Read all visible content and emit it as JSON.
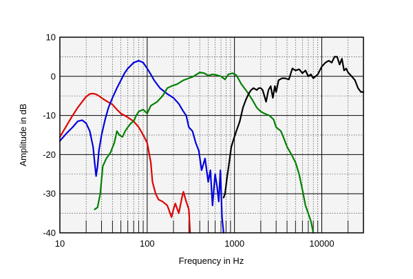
{
  "chart_data": {
    "type": "line",
    "title": "",
    "xlabel": "Frequency in Hz",
    "ylabel": "Amplitude in dB",
    "x_scale": "log",
    "xlim": [
      10,
      30000
    ],
    "ylim": [
      -40,
      10
    ],
    "grid": true,
    "x_ticks": [
      {
        "value": 10,
        "label": "10"
      },
      {
        "value": 100,
        "label": "100"
      },
      {
        "value": 1000,
        "label": "1000"
      },
      {
        "value": 10000,
        "label": "10000"
      }
    ],
    "y_ticks": [
      {
        "value": 10,
        "label": "10"
      },
      {
        "value": 0,
        "label": "0"
      },
      {
        "value": -10,
        "label": "-10"
      },
      {
        "value": -20,
        "label": "-20"
      },
      {
        "value": -30,
        "label": "-30"
      },
      {
        "value": -40,
        "label": "-40"
      }
    ],
    "series": [
      {
        "color": "#e00000",
        "points": [
          [
            10,
            -15.5
          ],
          [
            12,
            -12.5
          ],
          [
            14,
            -10
          ],
          [
            16,
            -8
          ],
          [
            18,
            -6.5
          ],
          [
            20,
            -5.2
          ],
          [
            22,
            -4.5
          ],
          [
            24,
            -4.4
          ],
          [
            26,
            -4.6
          ],
          [
            28,
            -5
          ],
          [
            30,
            -5.5
          ],
          [
            34,
            -6.3
          ],
          [
            40,
            -7.2
          ],
          [
            45,
            -8.5
          ],
          [
            50,
            -9.5
          ],
          [
            55,
            -10
          ],
          [
            60,
            -10.5
          ],
          [
            70,
            -11.5
          ],
          [
            80,
            -13
          ],
          [
            90,
            -15
          ],
          [
            100,
            -17
          ],
          [
            110,
            -22
          ],
          [
            115,
            -27
          ],
          [
            125,
            -30
          ],
          [
            135,
            -31.5
          ],
          [
            150,
            -32
          ],
          [
            170,
            -33
          ],
          [
            190,
            -36
          ],
          [
            200,
            -34
          ],
          [
            210,
            -32.5
          ],
          [
            230,
            -35
          ],
          [
            250,
            -31
          ],
          [
            260,
            -29.5
          ],
          [
            280,
            -32
          ],
          [
            300,
            -34
          ],
          [
            310,
            -40
          ]
        ]
      },
      {
        "color": "#0000dd",
        "points": [
          [
            10,
            -16.5
          ],
          [
            12,
            -14.5
          ],
          [
            14,
            -13
          ],
          [
            16,
            -11.5
          ],
          [
            18,
            -11.2
          ],
          [
            20,
            -12
          ],
          [
            22,
            -14
          ],
          [
            24,
            -18
          ],
          [
            25,
            -22
          ],
          [
            26,
            -25.5
          ],
          [
            27,
            -23
          ],
          [
            28,
            -19
          ],
          [
            30,
            -15
          ],
          [
            33,
            -11
          ],
          [
            36,
            -8
          ],
          [
            40,
            -5.5
          ],
          [
            45,
            -3
          ],
          [
            50,
            -1
          ],
          [
            55,
            0.8
          ],
          [
            60,
            2
          ],
          [
            70,
            3.5
          ],
          [
            80,
            4
          ],
          [
            90,
            3.5
          ],
          [
            100,
            2
          ],
          [
            110,
            0.5
          ],
          [
            120,
            -1
          ],
          [
            140,
            -3
          ],
          [
            170,
            -4.5
          ],
          [
            200,
            -5.5
          ],
          [
            230,
            -7
          ],
          [
            260,
            -9
          ],
          [
            280,
            -10
          ],
          [
            300,
            -13
          ],
          [
            330,
            -14
          ],
          [
            360,
            -17
          ],
          [
            390,
            -19
          ],
          [
            420,
            -24
          ],
          [
            460,
            -21
          ],
          [
            500,
            -27
          ],
          [
            530,
            -24
          ],
          [
            560,
            -33
          ],
          [
            600,
            -25
          ],
          [
            630,
            -28
          ],
          [
            660,
            -32
          ],
          [
            690,
            -24
          ],
          [
            720,
            -36
          ],
          [
            750,
            -40
          ]
        ]
      },
      {
        "color": "#007f00",
        "points": [
          [
            25,
            -34
          ],
          [
            27,
            -33.5
          ],
          [
            29,
            -30
          ],
          [
            31,
            -23
          ],
          [
            34,
            -21
          ],
          [
            38,
            -19.5
          ],
          [
            42,
            -17
          ],
          [
            45,
            -14
          ],
          [
            48,
            -15
          ],
          [
            52,
            -15.5
          ],
          [
            56,
            -14
          ],
          [
            60,
            -13
          ],
          [
            65,
            -12
          ],
          [
            70,
            -11.5
          ],
          [
            75,
            -10
          ],
          [
            80,
            -9
          ],
          [
            90,
            -8.5
          ],
          [
            100,
            -9.5
          ],
          [
            110,
            -7.5
          ],
          [
            120,
            -7
          ],
          [
            130,
            -6.5
          ],
          [
            150,
            -5
          ],
          [
            160,
            -4
          ],
          [
            170,
            -3
          ],
          [
            190,
            -2.5
          ],
          [
            220,
            -2
          ],
          [
            260,
            -1
          ],
          [
            300,
            -0.5
          ],
          [
            340,
            0
          ],
          [
            400,
            1
          ],
          [
            450,
            0.8
          ],
          [
            500,
            0.2
          ],
          [
            560,
            0.5
          ],
          [
            630,
            0.3
          ],
          [
            700,
            0
          ],
          [
            780,
            -0.8
          ],
          [
            850,
            0.5
          ],
          [
            950,
            0.8
          ],
          [
            1050,
            0.3
          ],
          [
            1100,
            -0.5
          ],
          [
            1200,
            -2
          ],
          [
            1400,
            -4
          ],
          [
            1600,
            -6
          ],
          [
            1800,
            -8
          ],
          [
            2000,
            -9
          ],
          [
            2200,
            -9.5
          ],
          [
            2500,
            -10
          ],
          [
            2800,
            -11
          ],
          [
            3000,
            -13
          ],
          [
            3400,
            -14
          ],
          [
            3700,
            -16
          ],
          [
            4000,
            -18
          ],
          [
            4500,
            -20
          ],
          [
            5000,
            -22
          ],
          [
            5500,
            -25
          ],
          [
            6000,
            -29
          ],
          [
            6500,
            -33
          ],
          [
            7000,
            -35
          ],
          [
            7500,
            -37
          ],
          [
            8000,
            -40
          ]
        ]
      },
      {
        "color": "#000000",
        "points": [
          [
            750,
            -31
          ],
          [
            780,
            -30
          ],
          [
            820,
            -26
          ],
          [
            870,
            -22
          ],
          [
            920,
            -18
          ],
          [
            980,
            -16
          ],
          [
            1050,
            -14
          ],
          [
            1150,
            -11.5
          ],
          [
            1250,
            -8
          ],
          [
            1350,
            -6
          ],
          [
            1450,
            -4.5
          ],
          [
            1550,
            -3.5
          ],
          [
            1650,
            -3
          ],
          [
            1800,
            -3.5
          ],
          [
            1900,
            -3
          ],
          [
            2000,
            -3
          ],
          [
            2100,
            -3.5
          ],
          [
            2200,
            -5
          ],
          [
            2300,
            -6.5
          ],
          [
            2450,
            -3.5
          ],
          [
            2600,
            -2.5
          ],
          [
            2750,
            -5.5
          ],
          [
            2900,
            -2.5
          ],
          [
            3000,
            -4
          ],
          [
            3200,
            -1
          ],
          [
            3500,
            -0.5
          ],
          [
            3800,
            -0.5
          ],
          [
            4200,
            -0.8
          ],
          [
            4600,
            2
          ],
          [
            5000,
            1.5
          ],
          [
            5500,
            1.8
          ],
          [
            6000,
            0.8
          ],
          [
            6500,
            1.5
          ],
          [
            7000,
            0
          ],
          [
            7500,
            0.5
          ],
          [
            8000,
            -0.5
          ],
          [
            9000,
            0.5
          ],
          [
            10000,
            2.5
          ],
          [
            11000,
            3.5
          ],
          [
            12000,
            4
          ],
          [
            13000,
            3.5
          ],
          [
            14000,
            5
          ],
          [
            15000,
            5
          ],
          [
            16000,
            3
          ],
          [
            17000,
            4.5
          ],
          [
            18000,
            1.5
          ],
          [
            19000,
            2
          ],
          [
            20000,
            1
          ],
          [
            22000,
            0
          ],
          [
            24000,
            -1
          ],
          [
            26000,
            -3
          ],
          [
            28000,
            -4
          ],
          [
            30000,
            -4
          ]
        ]
      }
    ]
  }
}
